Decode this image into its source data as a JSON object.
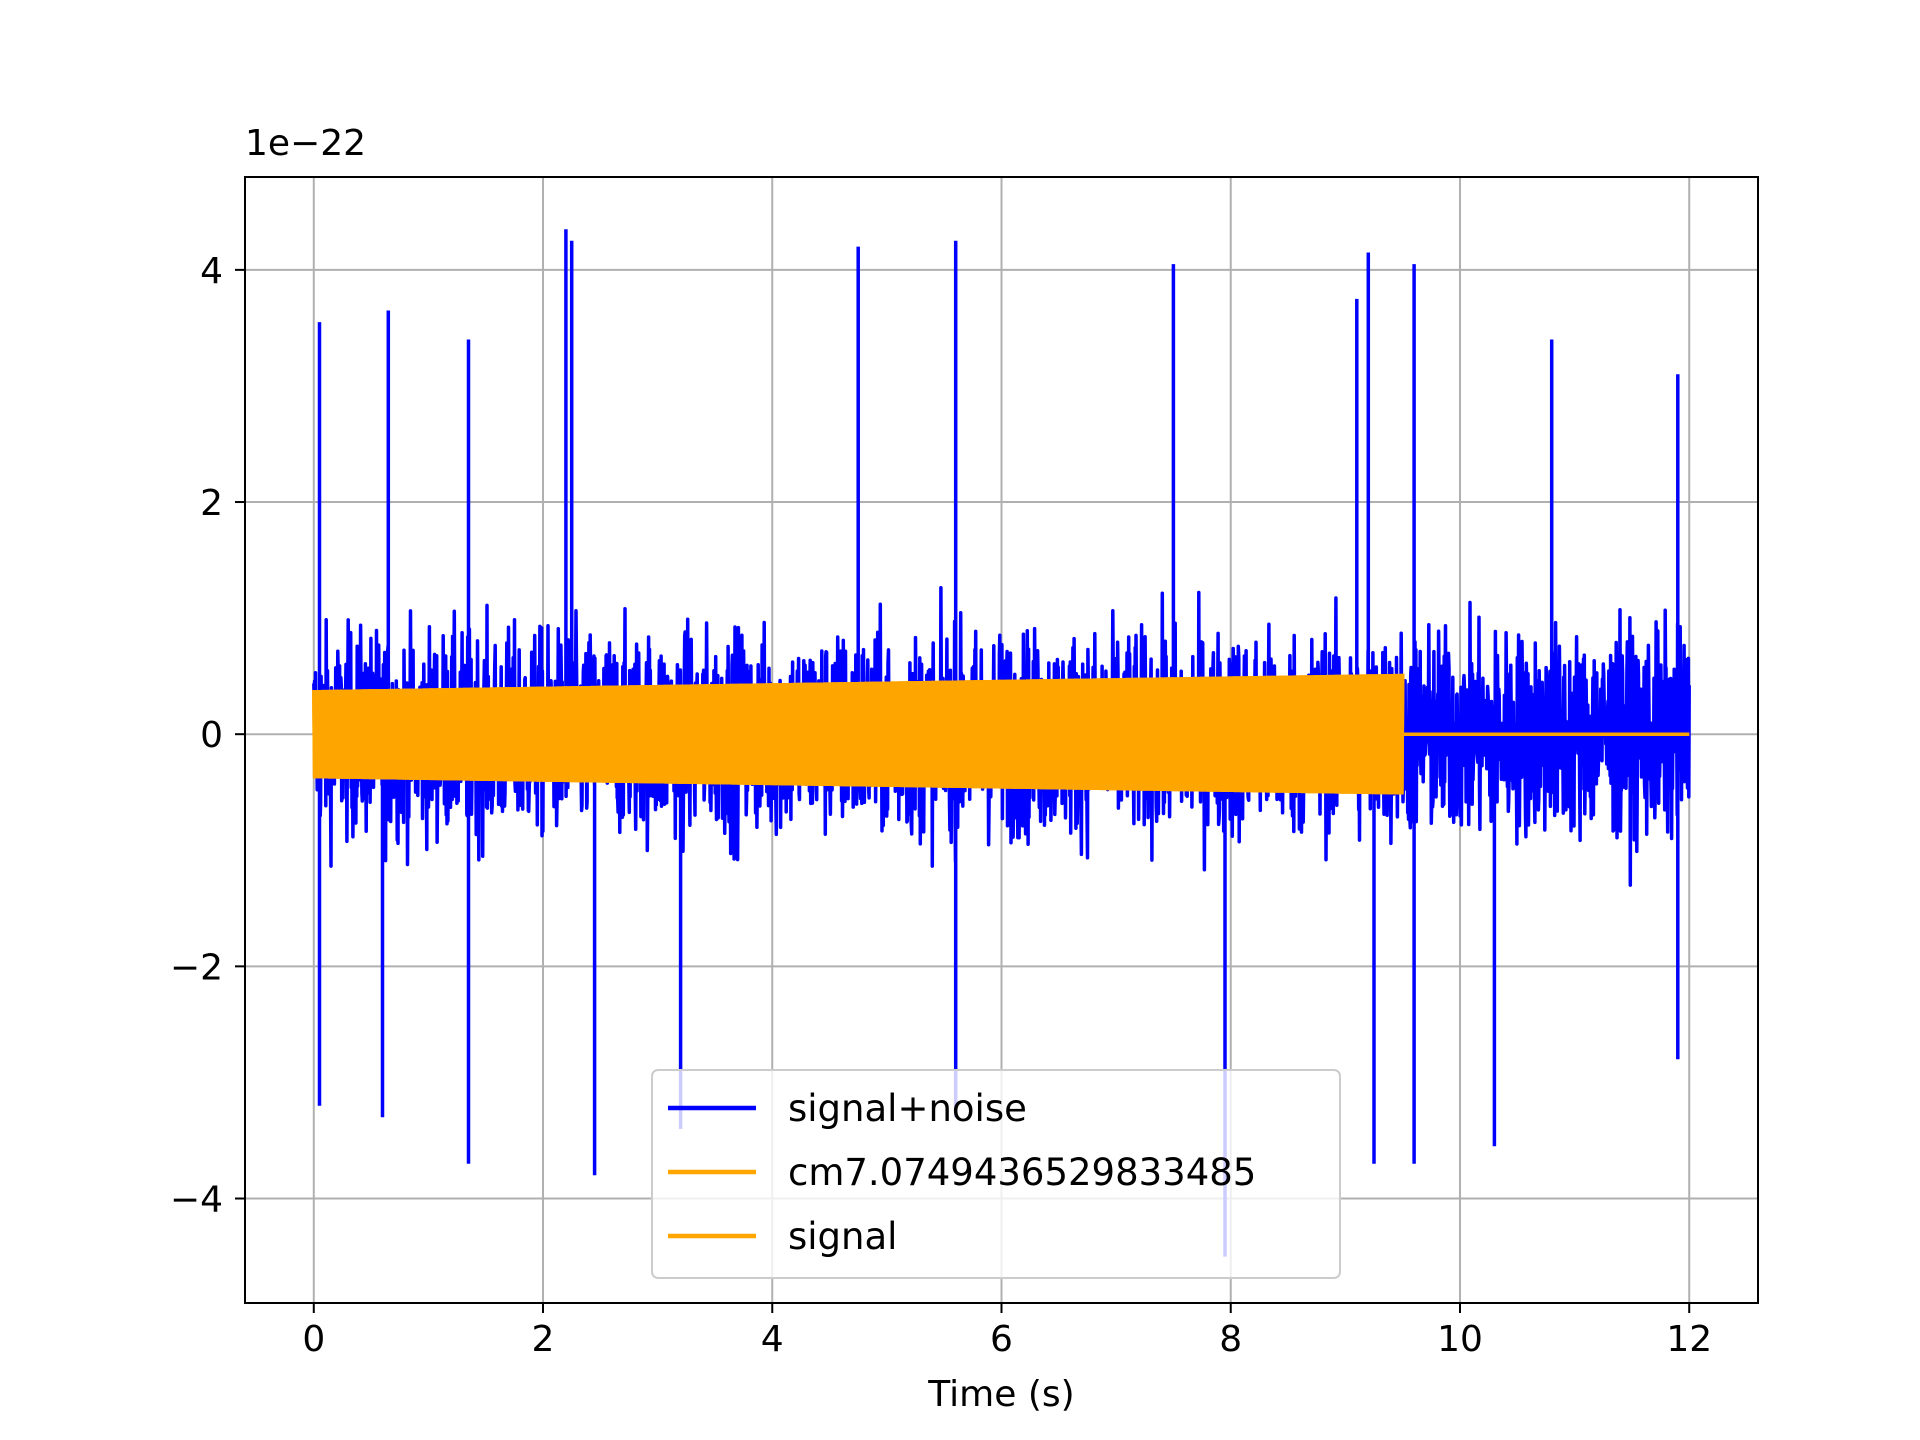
{
  "chart_data": {
    "type": "line",
    "title": "",
    "xlabel": "Time (s)",
    "ylabel": "",
    "y_scale_label": "1e−22",
    "xlim": [
      -0.6,
      12.6
    ],
    "ylim": [
      -4.9,
      4.8
    ],
    "x_ticks": [
      0,
      2,
      4,
      6,
      8,
      10,
      12
    ],
    "x_tick_labels": [
      "0",
      "2",
      "4",
      "6",
      "8",
      "10",
      "12"
    ],
    "y_ticks": [
      -4,
      -2,
      0,
      2,
      4
    ],
    "y_tick_labels": [
      "−4",
      "−2",
      "0",
      "2",
      "4"
    ],
    "grid": true,
    "legend_position": "lower center",
    "series": [
      {
        "name": "signal+noise",
        "color": "#0000ff",
        "x_range": [
          0,
          12
        ],
        "typical_amplitude": [
          -1.5,
          1.6
        ],
        "peak_envelope_upper": [
          [
            0.05,
            3.55
          ],
          [
            0.65,
            3.65
          ],
          [
            1.35,
            3.4
          ],
          [
            2.2,
            4.35
          ],
          [
            2.25,
            4.25
          ],
          [
            4.75,
            4.2
          ],
          [
            5.6,
            4.25
          ],
          [
            7.5,
            4.05
          ],
          [
            9.1,
            3.75
          ],
          [
            9.2,
            4.15
          ],
          [
            9.6,
            4.05
          ],
          [
            10.8,
            3.4
          ],
          [
            11.9,
            3.1
          ]
        ],
        "peak_envelope_lower": [
          [
            0.05,
            -3.2
          ],
          [
            0.6,
            -3.3
          ],
          [
            1.35,
            -3.7
          ],
          [
            2.45,
            -3.8
          ],
          [
            3.2,
            -3.4
          ],
          [
            5.6,
            -3.3
          ],
          [
            7.95,
            -4.5
          ],
          [
            9.25,
            -3.7
          ],
          [
            9.6,
            -3.7
          ],
          [
            10.3,
            -3.55
          ],
          [
            11.9,
            -2.8
          ]
        ]
      },
      {
        "name": "cm7.0749436529833485",
        "color": "#ffa500",
        "x_range": [
          0,
          9.5
        ],
        "envelope": [
          [
            0,
            0.38
          ],
          [
            9.5,
            0.52
          ]
        ],
        "after_end_value": 0.0
      },
      {
        "name": "signal",
        "color": "#ffa500",
        "x_range": [
          0,
          12
        ],
        "envelope": [
          [
            0,
            0.38
          ],
          [
            9.5,
            0.52
          ],
          [
            9.5,
            0.0
          ],
          [
            12,
            0.0
          ]
        ]
      }
    ]
  }
}
